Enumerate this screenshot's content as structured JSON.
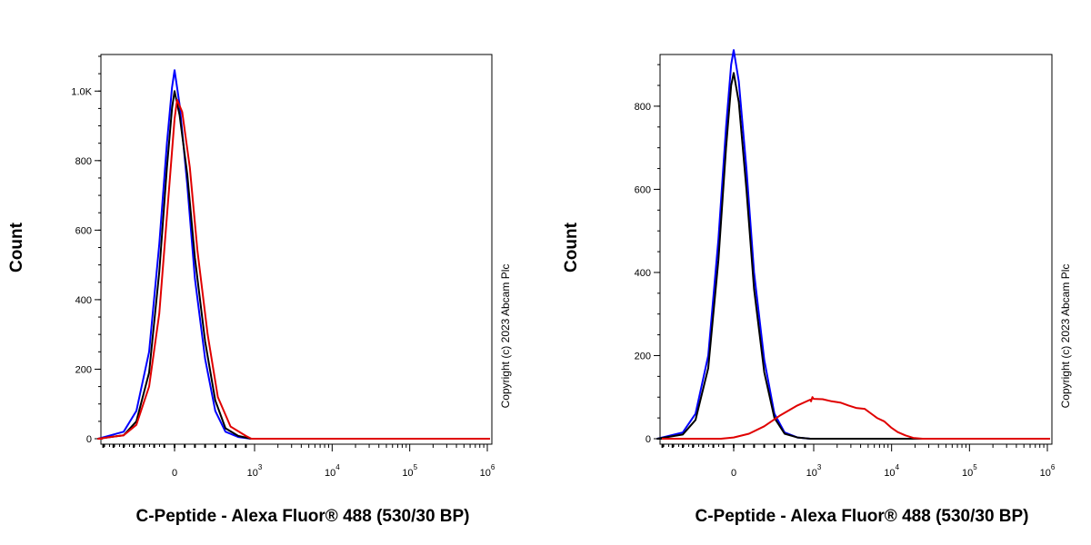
{
  "chart_data": [
    {
      "type": "line",
      "xlabel": "C-Peptide - Alexa Fluor® 488 (530/30 BP)",
      "ylabel": "Count",
      "copyright": "Copyright (c) 2023 Abcam Plc",
      "y_ticks": [
        {
          "value": 0,
          "label": "0"
        },
        {
          "value": 200,
          "label": "200"
        },
        {
          "value": 400,
          "label": "400"
        },
        {
          "value": 600,
          "label": "600"
        },
        {
          "value": 800,
          "label": "800"
        },
        {
          "value": 1000,
          "label": "1.0K"
        }
      ],
      "x_ticks": [
        {
          "value": 0,
          "base": "0",
          "exp": ""
        },
        {
          "value": 1000,
          "base": "10",
          "exp": "3"
        },
        {
          "value": 10000,
          "base": "10",
          "exp": "4"
        },
        {
          "value": 100000,
          "base": "10",
          "exp": "5"
        },
        {
          "value": 1000000,
          "base": "10",
          "exp": "6"
        }
      ],
      "ylim": [
        0,
        1100
      ],
      "x_scale": "biexponential",
      "grid": false,
      "series": [
        {
          "color": "#0000ff",
          "x": [
            -300,
            -200,
            -150,
            -100,
            -60,
            -30,
            -10,
            0,
            20,
            50,
            80,
            120,
            160,
            200,
            250,
            320
          ],
          "y": [
            0,
            20,
            80,
            250,
            560,
            850,
            1010,
            1060,
            960,
            730,
            460,
            230,
            80,
            20,
            5,
            0
          ]
        },
        {
          "color": "#000000",
          "x": [
            -300,
            -200,
            -150,
            -100,
            -60,
            -30,
            -10,
            0,
            20,
            50,
            80,
            120,
            160,
            200,
            250,
            320
          ],
          "y": [
            0,
            10,
            50,
            190,
            480,
            780,
            950,
            1000,
            930,
            760,
            520,
            280,
            110,
            30,
            8,
            0
          ]
        },
        {
          "color": "#e00000",
          "x": [
            -300,
            -200,
            -150,
            -100,
            -60,
            -30,
            0,
            10,
            30,
            60,
            90,
            130,
            170,
            220,
            280,
            350
          ],
          "y": [
            0,
            10,
            40,
            150,
            360,
            640,
            920,
            975,
            940,
            780,
            540,
            300,
            120,
            35,
            8,
            0
          ]
        }
      ]
    },
    {
      "type": "line",
      "xlabel": "C-Peptide - Alexa Fluor® 488 (530/30 BP)",
      "ylabel": "Count",
      "copyright": "Copyright (c) 2023 Abcam Plc",
      "y_ticks": [
        {
          "value": 0,
          "label": "0"
        },
        {
          "value": 200,
          "label": "200"
        },
        {
          "value": 400,
          "label": "400"
        },
        {
          "value": 600,
          "label": "600"
        },
        {
          "value": 800,
          "label": "800"
        }
      ],
      "x_ticks": [
        {
          "value": 0,
          "base": "0",
          "exp": ""
        },
        {
          "value": 1000,
          "base": "10",
          "exp": "3"
        },
        {
          "value": 10000,
          "base": "10",
          "exp": "4"
        },
        {
          "value": 100000,
          "base": "10",
          "exp": "5"
        },
        {
          "value": 1000000,
          "base": "10",
          "exp": "6"
        }
      ],
      "ylim": [
        0,
        920
      ],
      "x_scale": "biexponential",
      "grid": false,
      "series": [
        {
          "color": "#0000ff",
          "x": [
            -300,
            -200,
            -150,
            -100,
            -60,
            -30,
            -10,
            0,
            20,
            50,
            80,
            120,
            160,
            200,
            250,
            320
          ],
          "y": [
            0,
            15,
            60,
            200,
            480,
            750,
            900,
            935,
            860,
            650,
            400,
            190,
            60,
            15,
            3,
            0
          ]
        },
        {
          "color": "#000000",
          "x": [
            -300,
            -200,
            -150,
            -100,
            -60,
            -30,
            -10,
            0,
            20,
            50,
            80,
            120,
            160,
            200,
            250,
            320
          ],
          "y": [
            0,
            10,
            45,
            170,
            430,
            700,
            850,
            880,
            810,
            600,
            360,
            160,
            50,
            12,
            3,
            0
          ]
        },
        {
          "color": "#e00000",
          "x": [
            -50,
            0,
            60,
            120,
            180,
            250,
            330,
            420,
            520,
            650,
            800,
            1000,
            1300,
            1700,
            2200,
            2800,
            3500,
            4500,
            5500,
            6500,
            8000,
            10000,
            12000,
            15000,
            19000,
            25000
          ],
          "y": [
            0,
            3,
            12,
            30,
            55,
            80,
            94,
            90,
            95,
            100,
            98,
            96,
            95,
            90,
            87,
            80,
            74,
            72,
            60,
            50,
            42,
            26,
            16,
            8,
            2,
            0
          ]
        }
      ]
    }
  ]
}
